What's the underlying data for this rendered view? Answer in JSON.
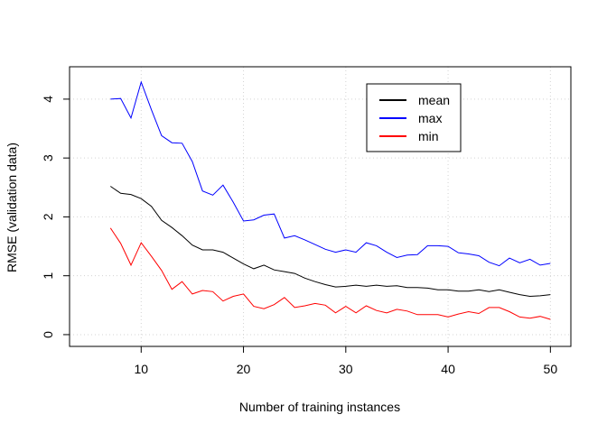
{
  "chart_data": {
    "type": "line",
    "title": "",
    "xlabel": "Number of training instances",
    "ylabel": "RMSE (validation data)",
    "xlim": [
      3,
      52
    ],
    "ylim": [
      -0.2,
      4.55
    ],
    "xticks": [
      10,
      20,
      30,
      40,
      50
    ],
    "yticks": [
      0,
      1,
      2,
      3,
      4
    ],
    "grid": true,
    "legend_position": "top-right",
    "x": [
      7,
      8,
      9,
      10,
      11,
      12,
      13,
      14,
      15,
      16,
      17,
      18,
      19,
      20,
      21,
      22,
      23,
      24,
      25,
      26,
      27,
      28,
      29,
      30,
      31,
      32,
      33,
      34,
      35,
      36,
      37,
      38,
      39,
      40,
      41,
      42,
      43,
      44,
      45,
      46,
      47,
      48,
      49,
      50
    ],
    "series": [
      {
        "name": "mean",
        "color": "#000000",
        "values": [
          2.52,
          2.4,
          2.38,
          2.31,
          2.18,
          1.94,
          1.82,
          1.68,
          1.52,
          1.44,
          1.44,
          1.4,
          1.3,
          1.2,
          1.12,
          1.18,
          1.1,
          1.07,
          1.04,
          0.96,
          0.9,
          0.85,
          0.81,
          0.82,
          0.84,
          0.82,
          0.84,
          0.82,
          0.83,
          0.8,
          0.8,
          0.79,
          0.76,
          0.76,
          0.74,
          0.74,
          0.76,
          0.73,
          0.76,
          0.72,
          0.68,
          0.65,
          0.66,
          0.68
        ]
      },
      {
        "name": "max",
        "color": "#0000ff",
        "values": [
          4.0,
          4.01,
          3.68,
          4.29,
          3.82,
          3.38,
          3.26,
          3.25,
          2.94,
          2.44,
          2.37,
          2.54,
          2.25,
          1.93,
          1.95,
          2.03,
          2.05,
          1.64,
          1.68,
          1.61,
          1.53,
          1.45,
          1.4,
          1.44,
          1.4,
          1.56,
          1.51,
          1.4,
          1.31,
          1.35,
          1.36,
          1.51,
          1.51,
          1.5,
          1.39,
          1.37,
          1.34,
          1.23,
          1.17,
          1.3,
          1.22,
          1.28,
          1.18,
          1.21
        ]
      },
      {
        "name": "min",
        "color": "#ff0000",
        "values": [
          1.81,
          1.55,
          1.18,
          1.56,
          1.33,
          1.09,
          0.77,
          0.9,
          0.69,
          0.75,
          0.73,
          0.57,
          0.65,
          0.69,
          0.48,
          0.44,
          0.51,
          0.63,
          0.46,
          0.49,
          0.53,
          0.5,
          0.37,
          0.48,
          0.37,
          0.49,
          0.41,
          0.37,
          0.43,
          0.4,
          0.34,
          0.34,
          0.34,
          0.3,
          0.35,
          0.39,
          0.36,
          0.46,
          0.46,
          0.39,
          0.3,
          0.28,
          0.31,
          0.26
        ]
      }
    ]
  }
}
